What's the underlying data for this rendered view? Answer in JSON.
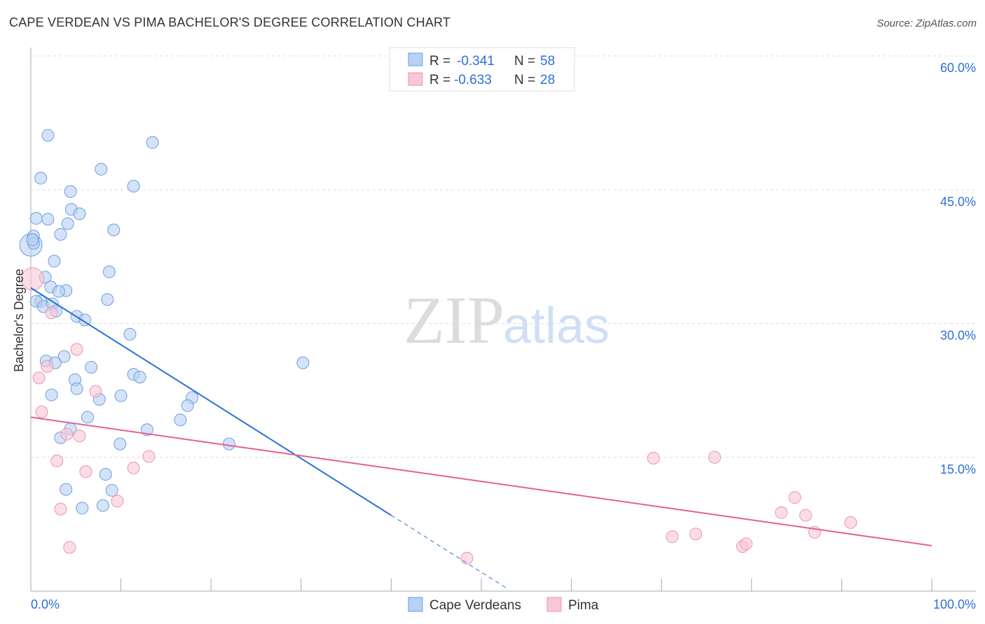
{
  "title": "CAPE VERDEAN VS PIMA BACHELOR'S DEGREE CORRELATION CHART",
  "source": "Source: ZipAtlas.com",
  "watermark": {
    "zip": "ZIP",
    "atlas": "atlas"
  },
  "colors": {
    "blue": "#6e9fe0",
    "blue_fill": "#b7d0f3",
    "blue_line": "#2b72d6",
    "pink": "#ef93b1",
    "pink_fill": "#f8c7d7",
    "pink_line": "#e5608f",
    "value_text": "#2f6fd6"
  },
  "legend": [
    {
      "r_label": "R = ",
      "r_value": "-0.341",
      "n_label": "N = ",
      "n_value": "58"
    },
    {
      "r_label": "R = ",
      "r_value": "-0.633",
      "n_label": "N = ",
      "n_value": "28"
    }
  ],
  "chart_data": {
    "type": "scatter",
    "title": "CAPE VERDEAN VS PIMA BACHELOR'S DEGREE CORRELATION CHART",
    "xlabel": "",
    "ylabel": "Bachelor's Degree",
    "xlim": [
      0,
      100
    ],
    "ylim": [
      0,
      60
    ],
    "x_tick_labels": [
      "0.0%",
      "100.0%"
    ],
    "y_ticks": [
      15,
      30,
      45,
      60
    ],
    "y_tick_labels": [
      "15.0%",
      "30.0%",
      "45.0%",
      "60.0%"
    ],
    "grid": true,
    "legend_placement": "top-center",
    "series": [
      {
        "name": "Cape Verdeans",
        "r": -0.341,
        "n": 58,
        "trend": {
          "intercept": 34.0,
          "slope": -0.6375,
          "solid_to_x": 40,
          "dashed_to_x": 53
        },
        "points": [
          [
            1.9,
            51.1
          ],
          [
            13.5,
            50.3
          ],
          [
            1.1,
            46.3
          ],
          [
            7.8,
            47.3
          ],
          [
            11.4,
            45.4
          ],
          [
            4.4,
            44.8
          ],
          [
            4.5,
            42.8
          ],
          [
            5.4,
            42.3
          ],
          [
            0.6,
            41.8
          ],
          [
            1.9,
            41.7
          ],
          [
            4.1,
            41.2
          ],
          [
            9.2,
            40.5
          ],
          [
            3.3,
            40.0
          ],
          [
            0.3,
            39.8
          ],
          [
            0.3,
            39.0
          ],
          [
            0.2,
            39.4
          ],
          [
            2.6,
            37.0
          ],
          [
            8.7,
            35.8
          ],
          [
            1.6,
            35.2
          ],
          [
            2.2,
            34.1
          ],
          [
            3.9,
            33.7
          ],
          [
            3.1,
            33.6
          ],
          [
            1.1,
            32.5
          ],
          [
            0.6,
            32.5
          ],
          [
            8.5,
            32.7
          ],
          [
            1.4,
            31.9
          ],
          [
            2.4,
            32.2
          ],
          [
            2.8,
            31.4
          ],
          [
            5.1,
            30.8
          ],
          [
            6.0,
            30.4
          ],
          [
            11.0,
            28.8
          ],
          [
            30.2,
            25.6
          ],
          [
            1.7,
            25.8
          ],
          [
            3.7,
            26.3
          ],
          [
            2.7,
            25.6
          ],
          [
            6.7,
            25.1
          ],
          [
            4.9,
            23.7
          ],
          [
            5.1,
            22.7
          ],
          [
            11.4,
            24.3
          ],
          [
            12.1,
            24.0
          ],
          [
            2.3,
            22.0
          ],
          [
            7.6,
            21.5
          ],
          [
            10.0,
            21.9
          ],
          [
            17.9,
            21.7
          ],
          [
            17.4,
            20.8
          ],
          [
            6.3,
            19.5
          ],
          [
            16.6,
            19.2
          ],
          [
            4.4,
            18.2
          ],
          [
            12.9,
            18.1
          ],
          [
            3.3,
            17.2
          ],
          [
            9.9,
            16.5
          ],
          [
            22.0,
            16.5
          ],
          [
            8.3,
            13.1
          ],
          [
            3.9,
            11.4
          ],
          [
            9.0,
            11.3
          ],
          [
            5.7,
            9.3
          ],
          [
            8.0,
            9.6
          ]
        ],
        "large_points": [
          [
            0.0,
            38.8
          ]
        ]
      },
      {
        "name": "Pima",
        "r": -0.633,
        "n": 28,
        "trend": {
          "intercept": 19.5,
          "slope": -0.144,
          "solid_to_x": 100
        },
        "points": [
          [
            2.3,
            31.2
          ],
          [
            5.1,
            27.1
          ],
          [
            1.8,
            25.2
          ],
          [
            0.9,
            23.9
          ],
          [
            7.2,
            22.4
          ],
          [
            1.2,
            20.1
          ],
          [
            4.0,
            17.6
          ],
          [
            5.4,
            17.4
          ],
          [
            13.1,
            15.1
          ],
          [
            2.9,
            14.6
          ],
          [
            11.4,
            13.8
          ],
          [
            6.1,
            13.4
          ],
          [
            9.6,
            10.1
          ],
          [
            3.3,
            9.2
          ],
          [
            4.3,
            4.9
          ],
          [
            48.4,
            3.7
          ],
          [
            69.1,
            14.9
          ],
          [
            75.9,
            15.0
          ],
          [
            71.2,
            6.1
          ],
          [
            73.8,
            6.4
          ],
          [
            79.0,
            5.0
          ],
          [
            79.4,
            5.3
          ],
          [
            84.8,
            10.5
          ],
          [
            83.3,
            8.8
          ],
          [
            86.0,
            8.5
          ],
          [
            87.0,
            6.6
          ],
          [
            91.0,
            7.7
          ]
        ],
        "large_points": [
          [
            0.2,
            35.0
          ]
        ]
      }
    ]
  }
}
